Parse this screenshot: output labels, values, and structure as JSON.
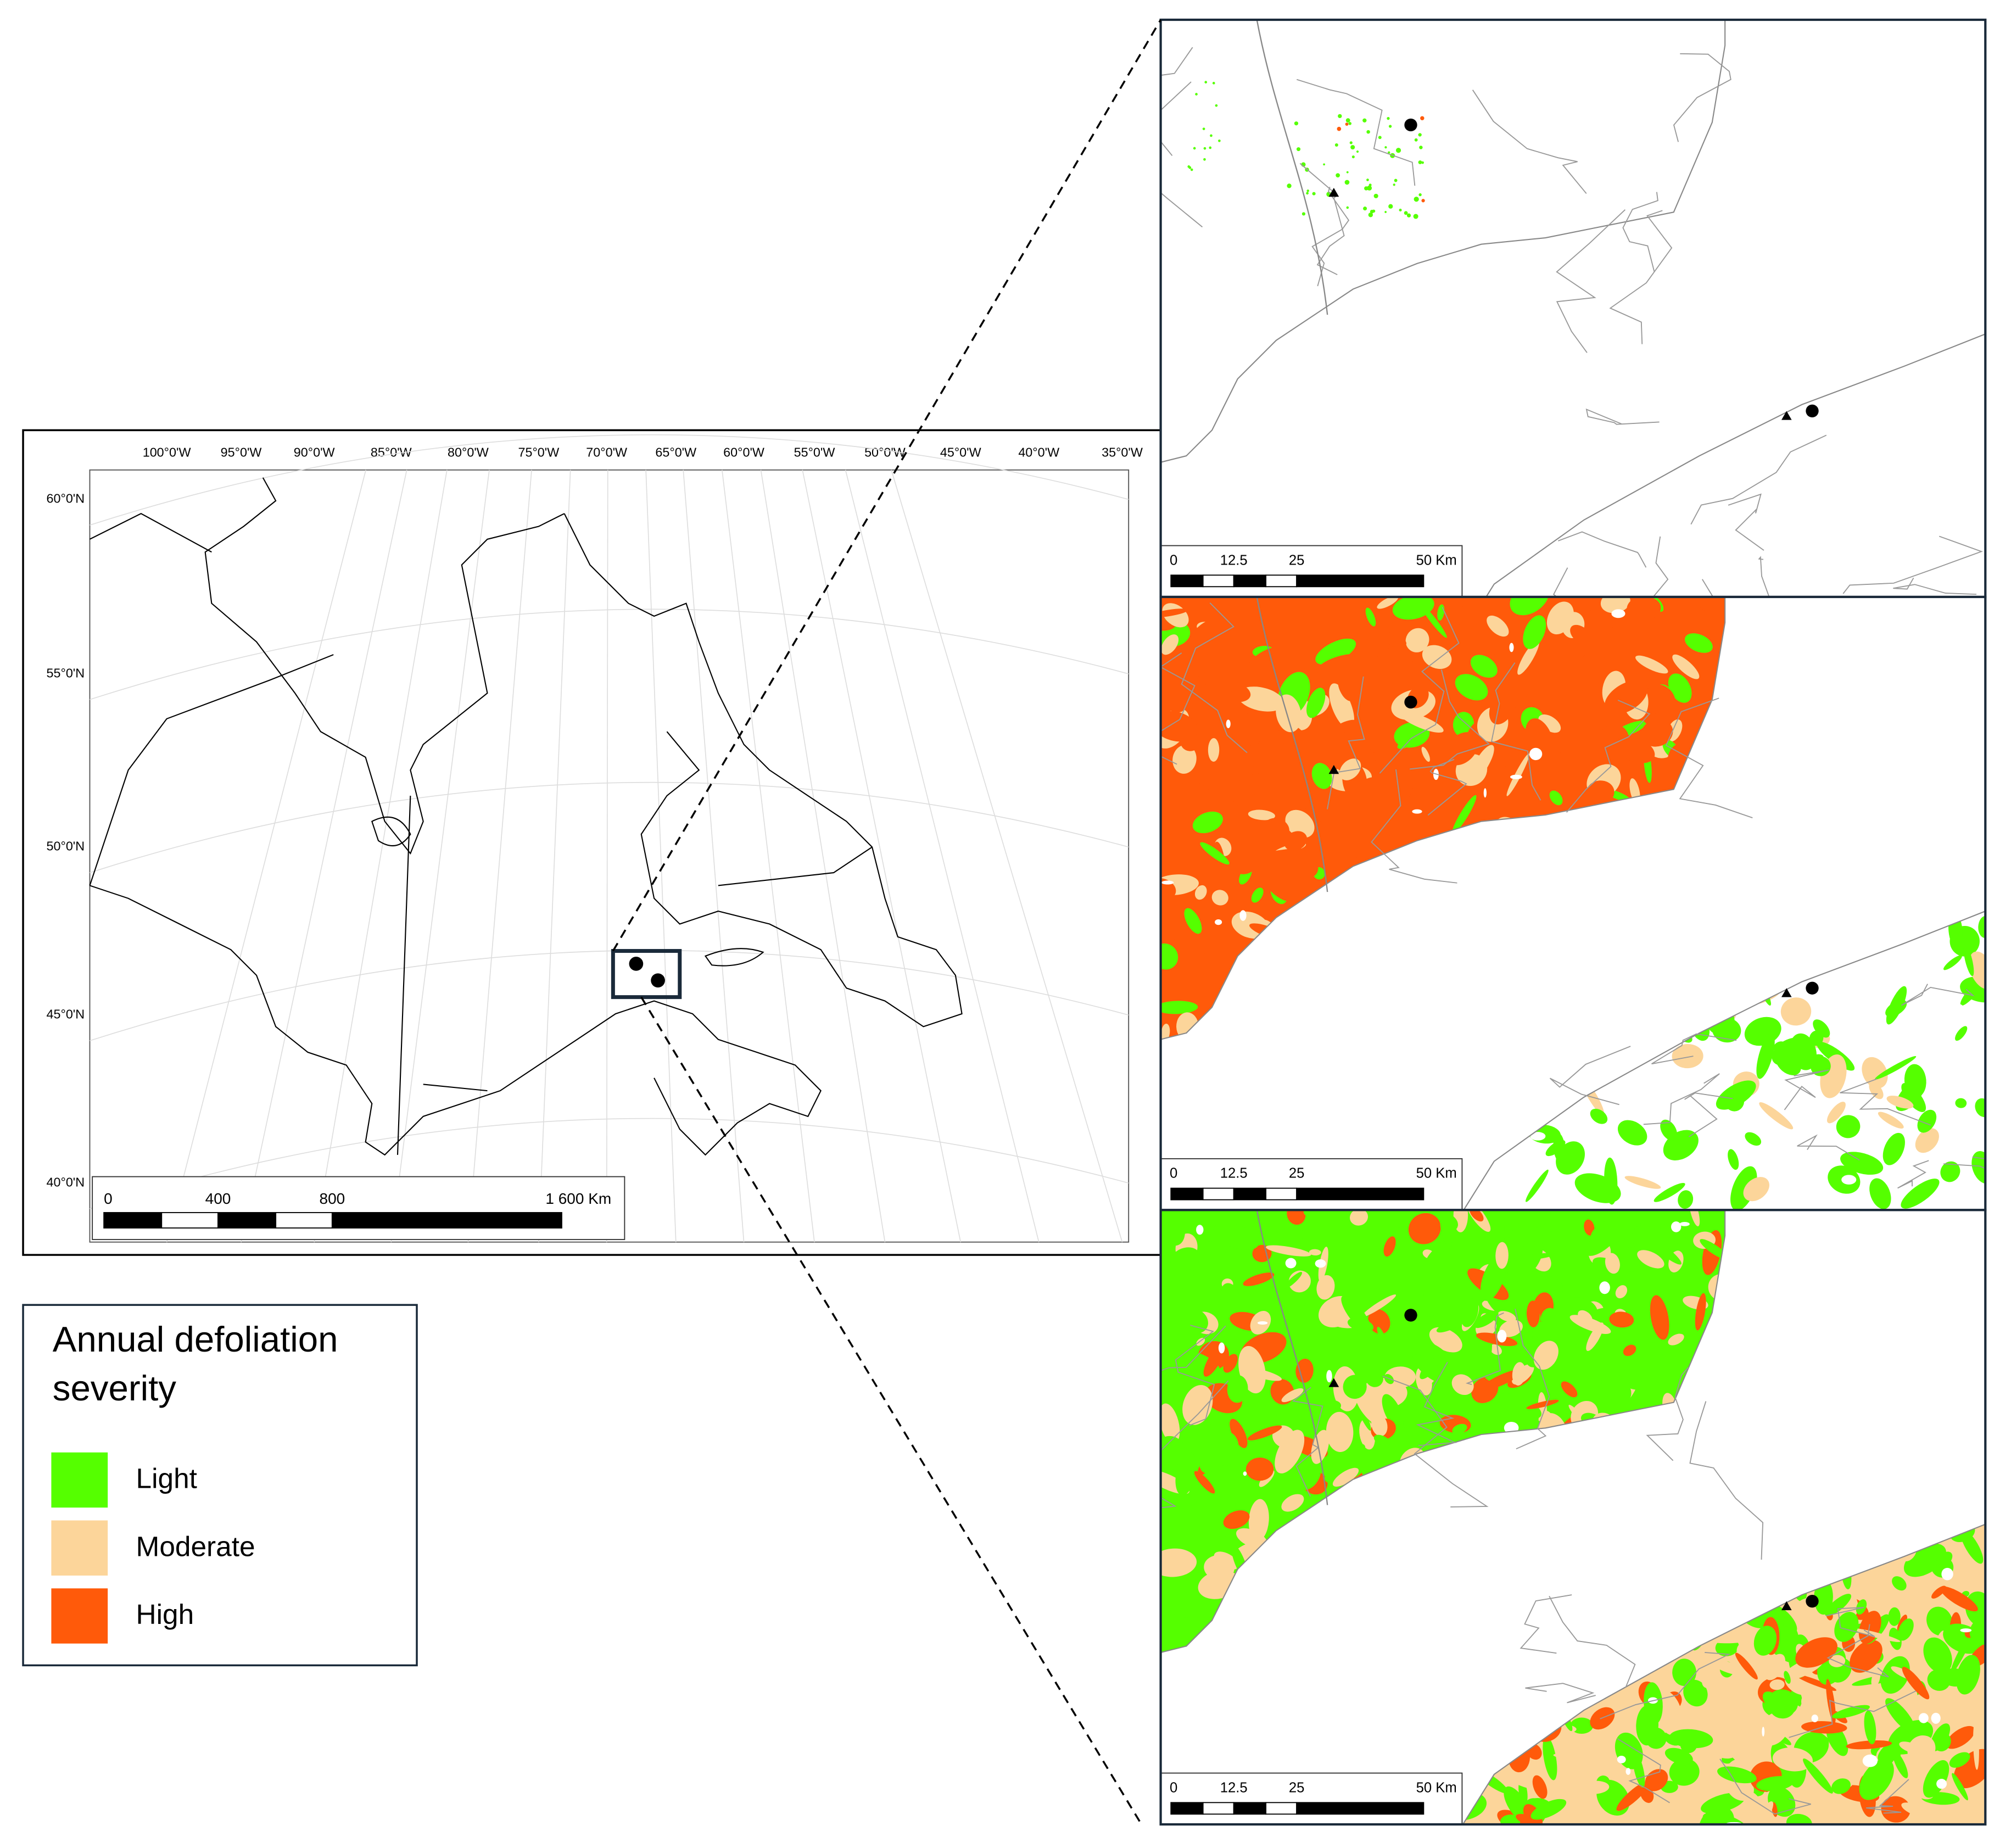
{
  "overview_map": {
    "longitude_labels": [
      "100°0'W",
      "95°0'W",
      "90°0'W",
      "85°0'W",
      "80°0'W",
      "75°0'W",
      "70°0'W",
      "65°0'W",
      "60°0'W",
      "55°0'W",
      "50°0'W",
      "45°0'W",
      "40°0'W",
      "35°0'W"
    ],
    "latitude_labels": [
      "60°0'N",
      "55°0'N",
      "50°0'N",
      "45°0'N",
      "40°0'N"
    ],
    "scale_bar": [
      "0",
      "400",
      "800",
      "1 600 Km"
    ]
  },
  "panels": [
    {
      "scale_bar": [
        "0",
        "12.5",
        "25",
        "50 Km"
      ]
    },
    {
      "scale_bar": [
        "0",
        "12.5",
        "25",
        "50 Km"
      ]
    },
    {
      "scale_bar": [
        "0",
        "12.5",
        "25",
        "50 Km"
      ]
    }
  ],
  "legend": {
    "title_lines": [
      "Annual defoliation",
      "severity"
    ],
    "items": [
      {
        "label": "Light",
        "color": "#55ff00"
      },
      {
        "label": "Moderate",
        "color": "#fcd59a"
      },
      {
        "label": "High",
        "color": "#ff5a0a"
      }
    ]
  }
}
